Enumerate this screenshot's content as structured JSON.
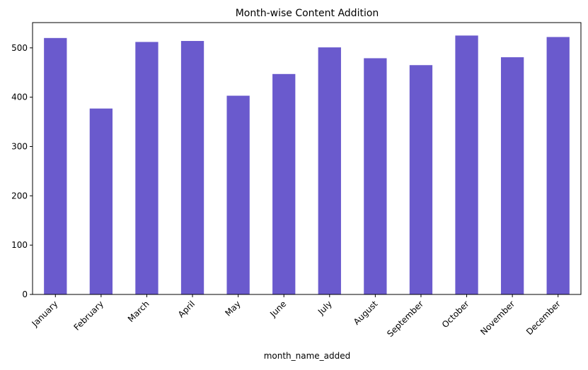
{
  "chart_data": {
    "type": "bar",
    "title": "Month-wise Content Addition",
    "xlabel": "month_name_added",
    "ylabel": "",
    "categories": [
      "January",
      "February",
      "March",
      "April",
      "May",
      "June",
      "July",
      "August",
      "September",
      "October",
      "November",
      "December"
    ],
    "values": [
      520,
      377,
      512,
      514,
      403,
      447,
      501,
      479,
      465,
      525,
      481,
      522
    ],
    "ylim": [
      0,
      551.25
    ],
    "yticks": [
      0,
      100,
      200,
      300,
      400,
      500
    ],
    "bar_color": "#6a5acd",
    "grid": false,
    "legend": "none",
    "xtick_rotation": 45
  }
}
